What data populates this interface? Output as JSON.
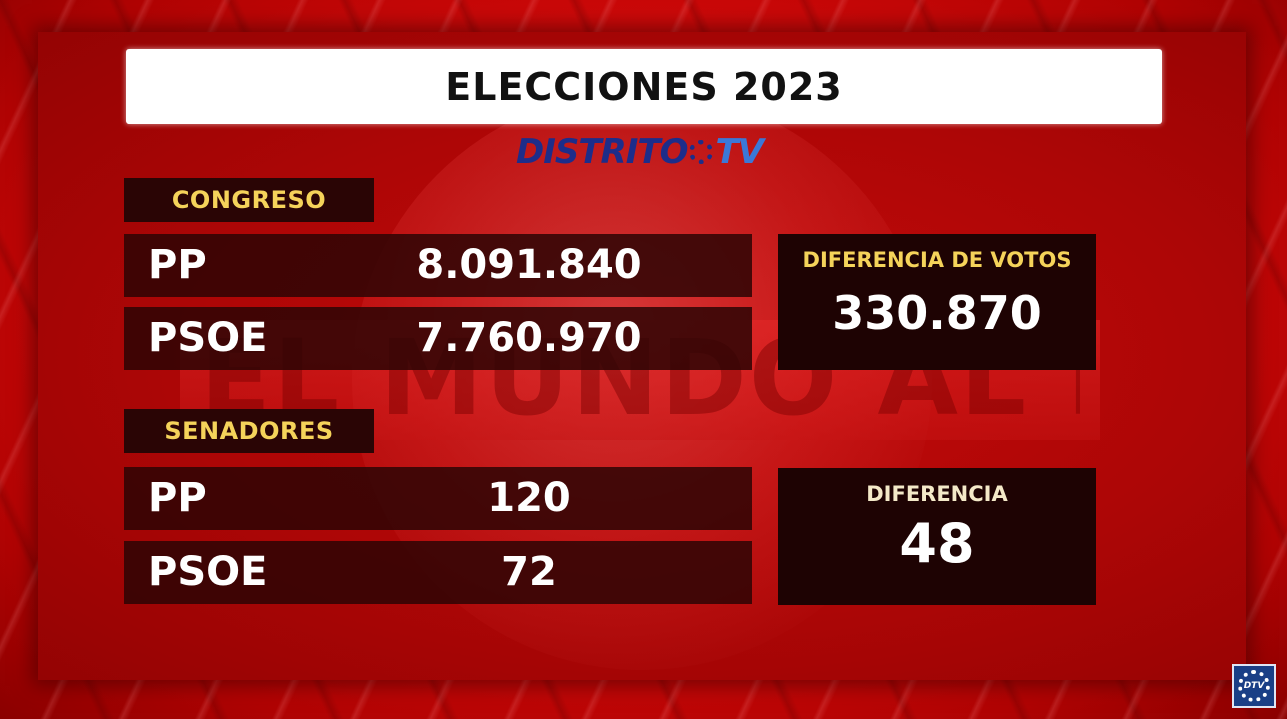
{
  "title": "ELECCIONES 2023",
  "logo": {
    "part1": "DISTRITO",
    "part2": "TV"
  },
  "watermark": "EL MUNDO AL ROJO",
  "congreso": {
    "label": "CONGRESO",
    "rows": [
      {
        "party": "PP",
        "value": "8.091.840"
      },
      {
        "party": "PSOE",
        "value": "7.760.970"
      }
    ],
    "difference_label": "DIFERENCIA DE VOTOS",
    "difference_value": "330.870"
  },
  "senadores": {
    "label": "SENADORES",
    "rows": [
      {
        "party": "PP",
        "value": "120"
      },
      {
        "party": "PSOE",
        "value": "72"
      }
    ],
    "difference_label": "DIFERENCIA",
    "difference_value": "48"
  },
  "corner_logo": "DTV",
  "colors": {
    "accent_yellow": "#f5d35a",
    "background_red": "#d80b0b",
    "logo_dark_blue": "#1d2d8a",
    "logo_light_blue": "#3b78d8"
  }
}
